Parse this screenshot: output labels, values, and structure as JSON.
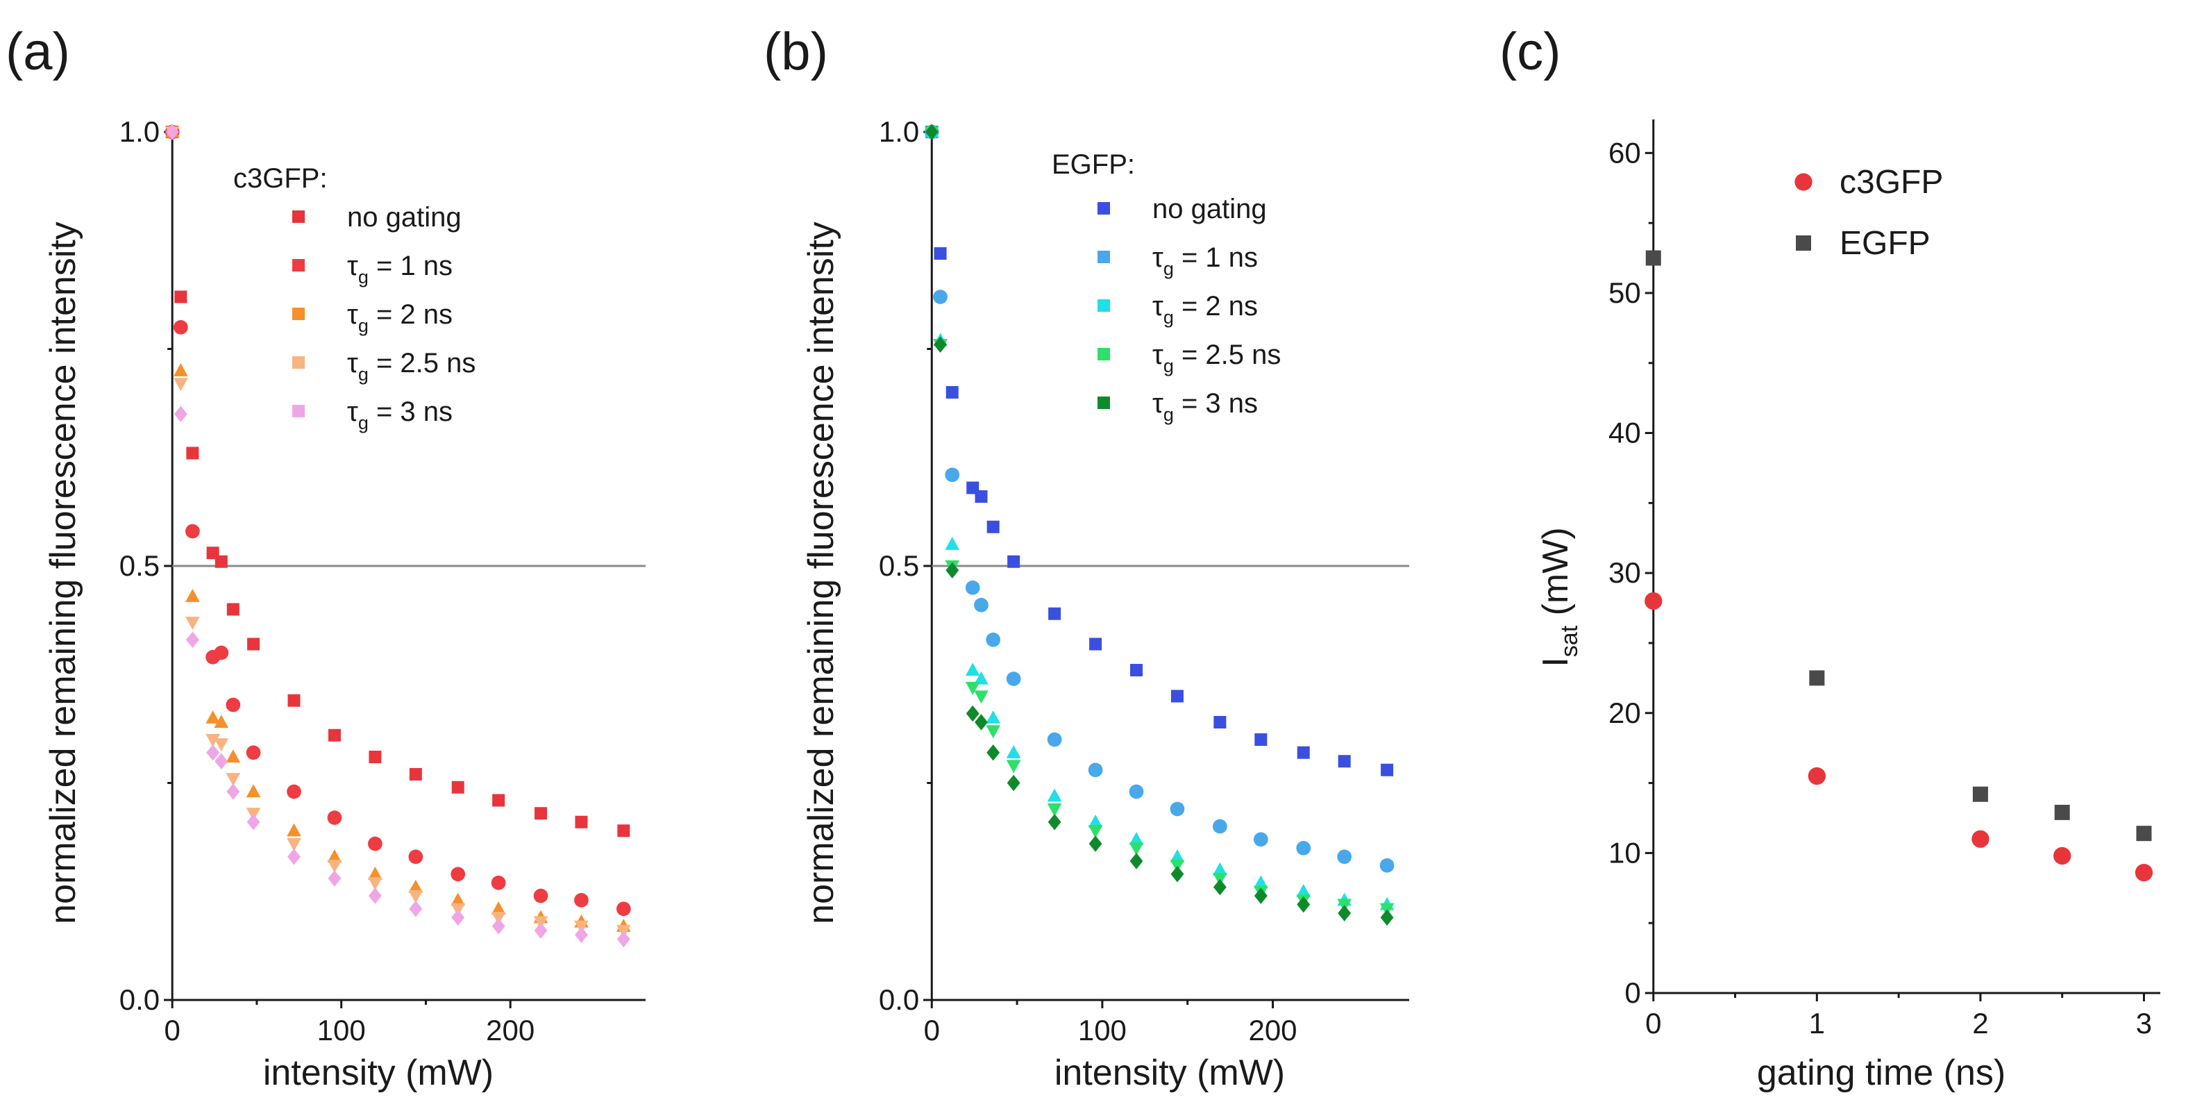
{
  "chart_data": [
    {
      "id": "a",
      "type": "scatter",
      "panel_label": "(a)",
      "xlabel": "intensity (mW)",
      "ylabel": "normalized remaining fluorescence intensity",
      "xlim": [
        -5,
        280
      ],
      "ylim": [
        0,
        1
      ],
      "xticks": [
        "0",
        "100",
        "200"
      ],
      "xtick_values": [
        0,
        100,
        200
      ],
      "yticks": [
        "0.0",
        "0.5",
        "1.0"
      ],
      "ytick_values": [
        0,
        0.5,
        1.0
      ],
      "reference_line": 0.5,
      "legend_title": "c3GFP:",
      "x": [
        0,
        5,
        12,
        24,
        29,
        36,
        48,
        72,
        96,
        120,
        144,
        169,
        193,
        218,
        242,
        267
      ],
      "series": [
        {
          "name_main": "no gating",
          "name_sub": "",
          "name_rest": "",
          "color": "#e8353c",
          "marker": "square",
          "values": [
            1.0,
            0.81,
            0.63,
            0.515,
            0.505,
            0.45,
            0.41,
            0.345,
            0.305,
            0.28,
            0.26,
            0.245,
            0.23,
            0.215,
            0.205,
            0.195
          ]
        },
        {
          "name_main": "τ",
          "name_sub": "g",
          "name_rest": " = 1 ns",
          "color": "#ee3c42",
          "marker": "circle",
          "values": [
            1.0,
            0.775,
            0.54,
            0.395,
            0.4,
            0.34,
            0.285,
            0.24,
            0.21,
            0.18,
            0.165,
            0.145,
            0.135,
            0.12,
            0.115,
            0.105
          ]
        },
        {
          "name_main": "τ",
          "name_sub": "g",
          "name_rest": " = 2 ns",
          "color": "#f5902a",
          "marker": "triangle-up",
          "values": [
            1.0,
            0.725,
            0.465,
            0.325,
            0.32,
            0.28,
            0.24,
            0.195,
            0.165,
            0.145,
            0.13,
            0.115,
            0.105,
            0.095,
            0.09,
            0.085
          ]
        },
        {
          "name_main": "τ",
          "name_sub": "g",
          "name_rest": " = 2.5 ns",
          "color": "#f8b480",
          "marker": "triangle-down",
          "values": [
            1.0,
            0.71,
            0.435,
            0.3,
            0.295,
            0.255,
            0.215,
            0.18,
            0.155,
            0.135,
            0.12,
            0.105,
            0.095,
            0.09,
            0.085,
            0.08
          ]
        },
        {
          "name_main": "τ",
          "name_sub": "g",
          "name_rest": " = 3 ns",
          "color": "#f0a6e6",
          "marker": "diamond",
          "values": [
            1.0,
            0.675,
            0.415,
            0.285,
            0.275,
            0.24,
            0.205,
            0.165,
            0.14,
            0.12,
            0.105,
            0.095,
            0.085,
            0.08,
            0.075,
            0.07
          ]
        }
      ]
    },
    {
      "id": "b",
      "type": "scatter",
      "panel_label": "(b)",
      "xlabel": "intensity (mW)",
      "ylabel": "normalized remaining fluorescence intensity",
      "xlim": [
        -5,
        280
      ],
      "ylim": [
        0,
        1
      ],
      "xticks": [
        "0",
        "100",
        "200"
      ],
      "xtick_values": [
        0,
        100,
        200
      ],
      "yticks": [
        "0.0",
        "0.5",
        "1.0"
      ],
      "ytick_values": [
        0,
        0.5,
        1.0
      ],
      "reference_line": 0.5,
      "legend_title": "EGFP:",
      "x": [
        0,
        5,
        12,
        24,
        29,
        36,
        48,
        72,
        96,
        120,
        144,
        169,
        193,
        218,
        242,
        267
      ],
      "series": [
        {
          "name_main": "no gating",
          "name_sub": "",
          "name_rest": "",
          "color": "#3a4fe0",
          "marker": "square",
          "values": [
            1.0,
            0.86,
            0.7,
            0.59,
            0.58,
            0.545,
            0.505,
            0.445,
            0.41,
            0.38,
            0.35,
            0.32,
            0.3,
            0.285,
            0.275,
            0.265
          ]
        },
        {
          "name_main": "τ",
          "name_sub": "g",
          "name_rest": " = 1 ns",
          "color": "#48a8ea",
          "marker": "circle",
          "values": [
            1.0,
            0.81,
            0.605,
            0.475,
            0.455,
            0.415,
            0.37,
            0.3,
            0.265,
            0.24,
            0.22,
            0.2,
            0.185,
            0.175,
            0.165,
            0.155
          ]
        },
        {
          "name_main": "τ",
          "name_sub": "g",
          "name_rest": " = 2 ns",
          "color": "#1ee0e6",
          "marker": "triangle-up",
          "values": [
            1.0,
            0.76,
            0.525,
            0.38,
            0.37,
            0.325,
            0.285,
            0.235,
            0.205,
            0.185,
            0.165,
            0.15,
            0.135,
            0.125,
            0.115,
            0.11
          ]
        },
        {
          "name_main": "τ",
          "name_sub": "g",
          "name_rest": " = 2.5 ns",
          "color": "#2de06a",
          "marker": "triangle-down",
          "values": [
            1.0,
            0.755,
            0.5,
            0.36,
            0.35,
            0.31,
            0.27,
            0.22,
            0.195,
            0.175,
            0.155,
            0.14,
            0.125,
            0.115,
            0.11,
            0.105
          ]
        },
        {
          "name_main": "τ",
          "name_sub": "g",
          "name_rest": " = 3 ns",
          "color": "#0f8a2a",
          "marker": "diamond",
          "values": [
            1.0,
            0.755,
            0.495,
            0.33,
            0.32,
            0.285,
            0.25,
            0.205,
            0.18,
            0.16,
            0.145,
            0.13,
            0.12,
            0.11,
            0.1,
            0.095
          ]
        }
      ]
    },
    {
      "id": "c",
      "type": "scatter",
      "panel_label": "(c)",
      "xlabel": "gating time (ns)",
      "ylabel_main": "I",
      "ylabel_sub": "sat",
      "ylabel_rest": " (mW)",
      "xlim": [
        -0.05,
        3.1
      ],
      "ylim": [
        0,
        62
      ],
      "xticks": [
        "0",
        "1",
        "2",
        "3"
      ],
      "xtick_values": [
        0,
        1,
        2,
        3
      ],
      "yticks": [
        "0",
        "10",
        "20",
        "30",
        "40",
        "50",
        "60"
      ],
      "ytick_values": [
        0,
        10,
        20,
        30,
        40,
        50,
        60
      ],
      "x": [
        0,
        1,
        2,
        2.5,
        3
      ],
      "series": [
        {
          "name": "c3GFP",
          "color": "#e8353c",
          "marker": "circle",
          "values": [
            28,
            15.5,
            11,
            9.8,
            8.6
          ]
        },
        {
          "name": "EGFP",
          "color": "#4a4a4a",
          "marker": "square",
          "values": [
            52.5,
            22.5,
            14.2,
            12.9,
            11.4
          ]
        }
      ]
    }
  ]
}
